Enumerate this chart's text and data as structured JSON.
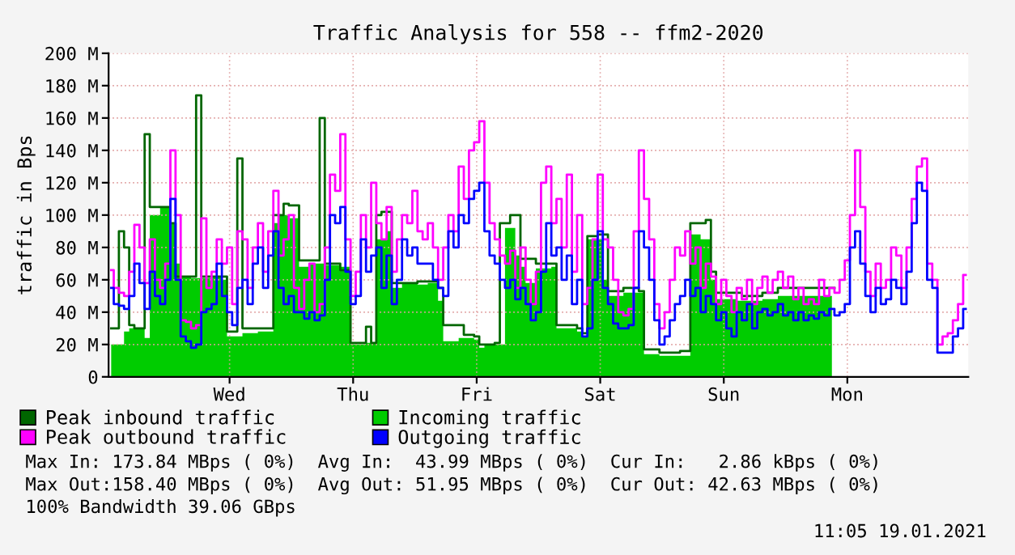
{
  "chart_data": {
    "type": "step",
    "title": "Traffic Analysis for 558 -- ffm2-2020",
    "ylabel": "traffic in Bps",
    "categories": [
      null,
      null,
      null,
      null,
      null,
      null,
      null,
      null,
      null,
      null,
      null,
      null,
      null,
      null,
      null,
      null,
      null,
      null,
      null,
      null,
      null,
      null,
      null,
      "Wed",
      null,
      null,
      null,
      null,
      null,
      null,
      null,
      null,
      null,
      null,
      null,
      null,
      null,
      null,
      null,
      null,
      null,
      null,
      null,
      null,
      null,
      null,
      null,
      "Thu",
      null,
      null,
      null,
      null,
      null,
      null,
      null,
      null,
      null,
      null,
      null,
      null,
      null,
      null,
      null,
      null,
      null,
      null,
      null,
      null,
      null,
      null,
      null,
      "Fri",
      null,
      null,
      null,
      null,
      null,
      null,
      null,
      null,
      null,
      null,
      null,
      null,
      null,
      null,
      null,
      null,
      null,
      null,
      null,
      null,
      null,
      null,
      null,
      "Sat",
      null,
      null,
      null,
      null,
      null,
      null,
      null,
      null,
      null,
      null,
      null,
      null,
      null,
      null,
      null,
      null,
      null,
      null,
      null,
      null,
      null,
      null,
      null,
      "Sun",
      null,
      null,
      null,
      null,
      null,
      null,
      null,
      null,
      null,
      null,
      null,
      null,
      null,
      null,
      null,
      null,
      null,
      null,
      null,
      null,
      null,
      null,
      null,
      "Mon",
      null,
      null,
      null,
      null,
      null,
      null,
      null,
      null,
      null,
      null,
      null,
      null,
      null,
      null,
      null,
      null,
      null,
      null,
      null,
      null,
      null,
      null,
      null
    ],
    "series": [
      {
        "name": "Peak inbound traffic",
        "color": "#006600",
        "values": [
          30,
          30,
          90,
          80,
          32,
          30,
          30,
          150,
          105,
          105,
          105,
          105,
          95,
          62,
          62,
          62,
          62,
          174,
          62,
          62,
          62,
          62,
          62,
          28,
          28,
          135,
          30,
          30,
          30,
          30,
          30,
          30,
          100,
          100,
          107,
          106,
          106,
          72,
          72,
          72,
          72,
          160,
          70,
          70,
          70,
          66,
          66,
          21,
          21,
          21,
          31,
          21,
          100,
          102,
          102,
          58,
          58,
          58,
          58,
          58,
          59,
          59,
          59,
          59,
          55,
          32,
          32,
          32,
          32,
          26,
          26,
          25,
          20,
          20,
          20,
          21,
          95,
          95,
          100,
          100,
          73,
          73,
          73,
          70,
          70,
          70,
          70,
          32,
          32,
          32,
          32,
          30,
          27,
          87,
          87,
          88,
          88,
          53,
          53,
          53,
          55,
          55,
          55,
          53,
          17,
          17,
          17,
          15,
          15,
          15,
          15,
          16,
          16,
          95,
          95,
          95,
          97,
          65,
          52,
          52,
          52,
          52,
          52,
          50,
          50,
          50,
          50,
          52,
          52,
          52,
          55,
          55,
          55,
          55,
          55,
          55,
          55,
          55,
          55,
          55,
          55,
          null,
          null,
          null,
          null,
          null,
          null,
          null,
          null,
          null,
          null,
          null,
          null,
          null,
          null,
          null,
          null,
          null,
          null,
          null,
          null,
          null,
          null,
          null,
          null,
          null,
          null
        ]
      },
      {
        "name": "Peak outbound traffic",
        "color": "#ff00ff",
        "values": [
          66,
          55,
          52,
          50,
          65,
          94,
          80,
          58,
          85,
          60,
          55,
          70,
          140,
          100,
          35,
          34,
          30,
          32,
          98,
          55,
          65,
          85,
          70,
          80,
          45,
          90,
          85,
          55,
          80,
          95,
          65,
          90,
          115,
          75,
          85,
          100,
          55,
          42,
          60,
          70,
          40,
          45,
          80,
          125,
          115,
          150,
          85,
          50,
          65,
          100,
          80,
          120,
          95,
          85,
          105,
          65,
          85,
          100,
          95,
          115,
          90,
          85,
          95,
          80,
          60,
          80,
          100,
          90,
          130,
          110,
          140,
          145,
          158,
          120,
          95,
          85,
          75,
          70,
          78,
          55,
          80,
          60,
          45,
          65,
          120,
          130,
          95,
          110,
          80,
          125,
          65,
          100,
          45,
          55,
          85,
          125,
          85,
          80,
          60,
          40,
          38,
          42,
          90,
          140,
          110,
          85,
          45,
          30,
          40,
          60,
          80,
          75,
          90,
          70,
          80,
          55,
          70,
          62,
          45,
          60,
          50,
          40,
          55,
          48,
          60,
          45,
          55,
          62,
          52,
          60,
          65,
          55,
          62,
          48,
          55,
          45,
          48,
          45,
          60,
          50,
          55,
          52,
          60,
          72,
          100,
          140,
          105,
          65,
          50,
          70,
          55,
          60,
          80,
          75,
          55,
          80,
          110,
          130,
          135,
          70,
          60,
          20,
          25,
          27,
          35,
          45,
          63
        ]
      },
      {
        "name": "Incoming traffic",
        "type": "area",
        "color": "#00cc00",
        "values": [
          20,
          20,
          20,
          28,
          30,
          30,
          30,
          24,
          100,
          100,
          105,
          105,
          95,
          70,
          62,
          62,
          61,
          61,
          61,
          61,
          62,
          62,
          60,
          25,
          25,
          25,
          27,
          27,
          27,
          28,
          28,
          28,
          95,
          100,
          100,
          98,
          98,
          68,
          68,
          70,
          70,
          70,
          69,
          69,
          69,
          68,
          68,
          20,
          20,
          20,
          21,
          21,
          85,
          85,
          90,
          55,
          55,
          58,
          58,
          58,
          57,
          57,
          58,
          58,
          47,
          22,
          22,
          22,
          24,
          24,
          24,
          23,
          18,
          20,
          20,
          20,
          20,
          92,
          92,
          75,
          68,
          58,
          58,
          67,
          67,
          67,
          68,
          30,
          30,
          30,
          30,
          28,
          25,
          85,
          85,
          85,
          60,
          50,
          50,
          50,
          52,
          52,
          52,
          52,
          14,
          14,
          14,
          13,
          13,
          13,
          13,
          13,
          13,
          88,
          88,
          85,
          85,
          60,
          48,
          48,
          48,
          48,
          47,
          47,
          47,
          47,
          47,
          48,
          48,
          48,
          50,
          50,
          50,
          50,
          50,
          50,
          50,
          50,
          50,
          50,
          50,
          null,
          null,
          null,
          null,
          null,
          null,
          null,
          null,
          null,
          null,
          null,
          null,
          null,
          null,
          null,
          null,
          null,
          null,
          null,
          null,
          null,
          null,
          null,
          null,
          null,
          null
        ]
      },
      {
        "name": "Outgoing traffic",
        "color": "#0000ff",
        "values": [
          55,
          45,
          44,
          42,
          50,
          70,
          58,
          42,
          65,
          50,
          45,
          60,
          110,
          60,
          25,
          22,
          18,
          20,
          40,
          42,
          45,
          70,
          50,
          40,
          32,
          55,
          60,
          45,
          70,
          80,
          55,
          75,
          90,
          55,
          45,
          50,
          40,
          40,
          36,
          40,
          35,
          38,
          60,
          100,
          95,
          105,
          65,
          45,
          50,
          85,
          65,
          75,
          80,
          55,
          75,
          45,
          60,
          85,
          75,
          80,
          70,
          70,
          70,
          60,
          55,
          50,
          90,
          80,
          100,
          95,
          110,
          115,
          120,
          90,
          75,
          70,
          60,
          55,
          60,
          48,
          55,
          45,
          35,
          40,
          65,
          95,
          75,
          80,
          60,
          75,
          45,
          60,
          25,
          30,
          60,
          90,
          55,
          45,
          33,
          30,
          30,
          32,
          55,
          90,
          80,
          60,
          35,
          20,
          25,
          35,
          45,
          50,
          60,
          50,
          55,
          40,
          50,
          45,
          35,
          40,
          30,
          25,
          40,
          35,
          45,
          30,
          40,
          42,
          38,
          40,
          45,
          38,
          40,
          35,
          40,
          35,
          38,
          36,
          40,
          38,
          42,
          38,
          40,
          45,
          80,
          90,
          70,
          50,
          40,
          55,
          45,
          48,
          60,
          55,
          45,
          65,
          95,
          120,
          115,
          60,
          55,
          15,
          15,
          15,
          25,
          30,
          42
        ]
      }
    ],
    "ylim": [
      0,
      200
    ],
    "yticks": [
      0,
      {
        "value": 20,
        "label": "20 M"
      },
      {
        "value": 40,
        "label": "40 M"
      },
      {
        "value": 60,
        "label": "60 M"
      },
      {
        "value": 80,
        "label": "80 M"
      },
      {
        "value": 100,
        "label": "100 M"
      },
      {
        "value": 120,
        "label": "120 M"
      },
      {
        "value": 140,
        "label": "140 M"
      },
      {
        "value": 160,
        "label": "160 M"
      },
      {
        "value": 180,
        "label": "180 M"
      },
      {
        "value": 200,
        "label": "200 M"
      }
    ],
    "grid": true,
    "legend": "bottom",
    "annotations": [
      "Max In: 173.84 MBps ( 0%)  Avg In:  43.99 MBps ( 0%)  Cur In:   2.86 kBps ( 0%)",
      "Max Out:158.40 MBps ( 0%)  Avg Out: 51.95 MBps ( 0%)  Cur Out: 42.63 MBps ( 0%)",
      "100% Bandwidth 39.06 GBps",
      "11:05 19.01.2021"
    ]
  }
}
